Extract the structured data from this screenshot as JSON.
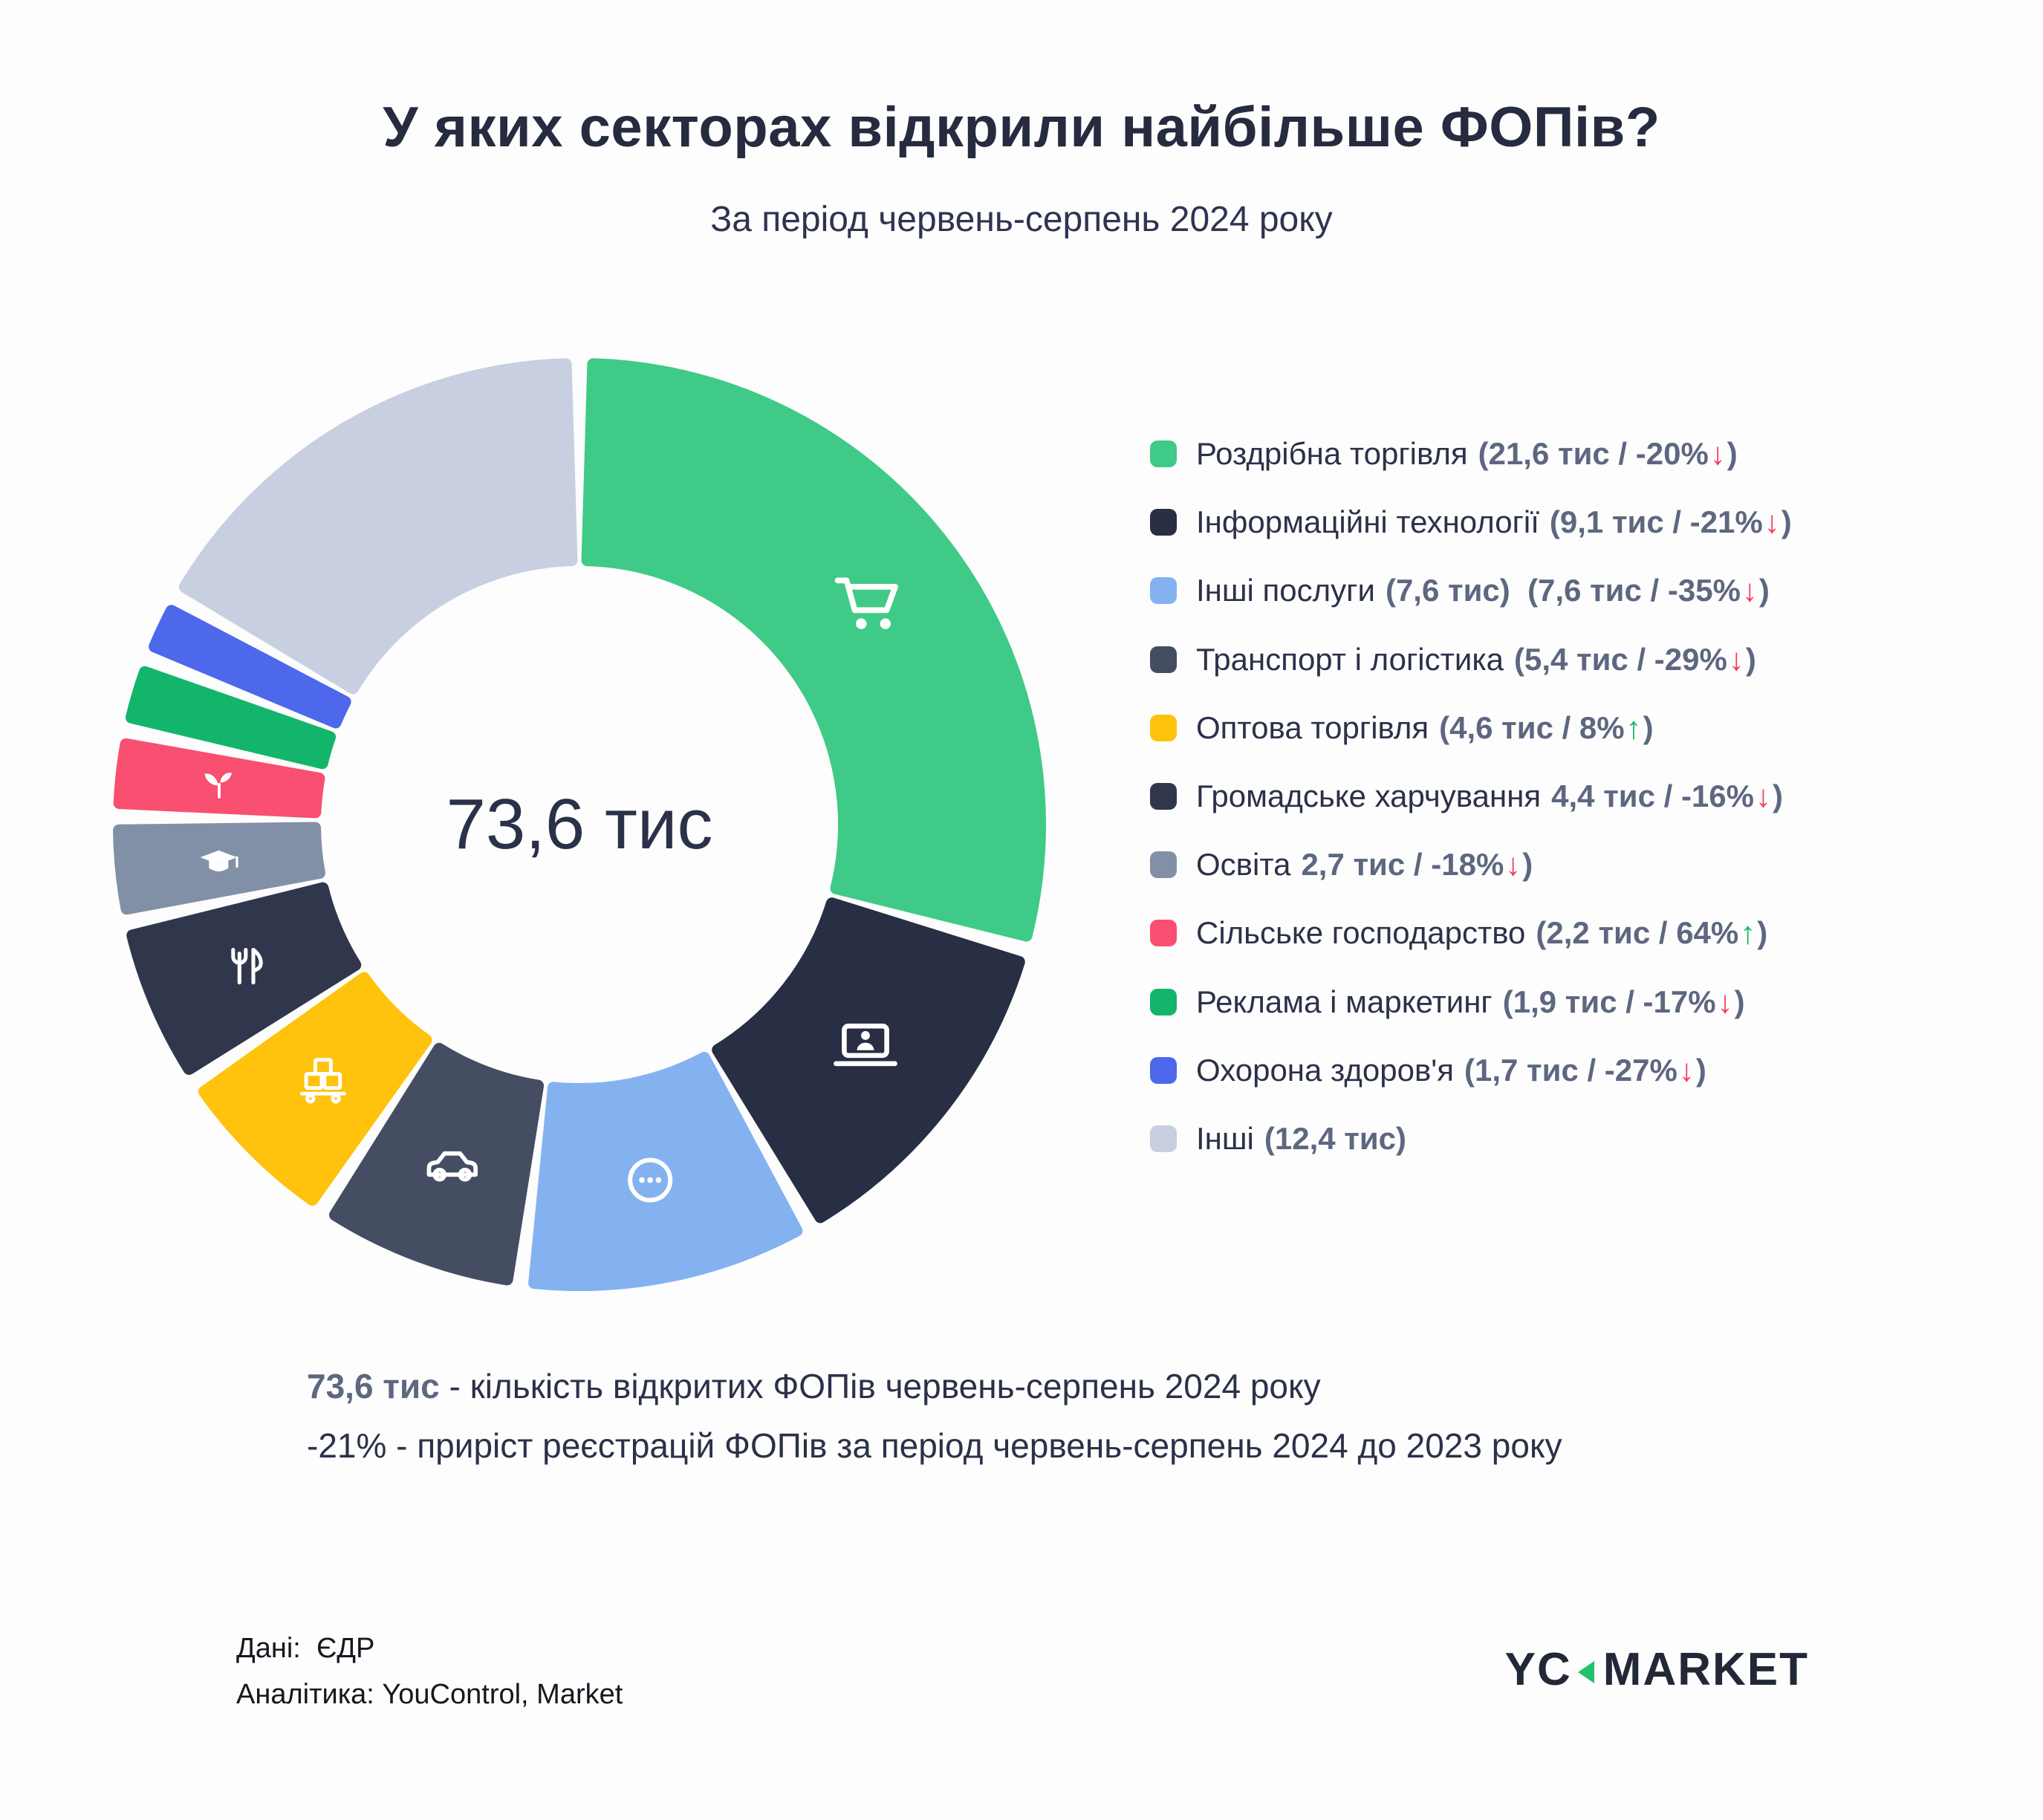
{
  "title": "У яких секторах відкрили найбільше ФОПів?",
  "subtitle": "За період червень-серпень 2024 року",
  "chart_data": {
    "type": "pie",
    "variant": "donut",
    "center_label": "73,6 тис",
    "total_thousands": 73.6,
    "units": "тис",
    "start_angle": "top",
    "direction": "clockwise",
    "legend_position": "right",
    "segments": [
      {
        "label": "Роздрібна торгівля",
        "value": 21.6,
        "change_pct": -20,
        "color": "#3fca87",
        "icon": "cart-icon"
      },
      {
        "label": "Інформаційні технології",
        "value": 9.1,
        "change_pct": -21,
        "color": "#282e44",
        "icon": "laptop-icon"
      },
      {
        "label": "Інші послуги",
        "value": 7.6,
        "change_pct": -35,
        "color": "#84b2f1",
        "icon": "dots-icon"
      },
      {
        "label": "Транспорт і логістика",
        "value": 5.4,
        "change_pct": -29,
        "color": "#454d63",
        "icon": "car-icon"
      },
      {
        "label": "Оптова торгівля",
        "value": 4.6,
        "change_pct": 8,
        "color": "#ffc20d",
        "icon": "boxes-icon"
      },
      {
        "label": "Громадське харчування",
        "value": 4.4,
        "change_pct": -16,
        "color": "#30374d",
        "icon": "cutlery-icon"
      },
      {
        "label": "Освіта",
        "value": 2.7,
        "change_pct": -18,
        "color": "#8290a7",
        "icon": "grad-cap-icon"
      },
      {
        "label": "Сільське господарство",
        "value": 2.2,
        "change_pct": 64,
        "color": "#f94f70",
        "icon": "sprout-icon"
      },
      {
        "label": "Реклама і маркетинг",
        "value": 1.9,
        "change_pct": -17,
        "color": "#13b56a",
        "icon": null
      },
      {
        "label": "Охорона здоров'я",
        "value": 1.7,
        "change_pct": -27,
        "color": "#4d68ea",
        "icon": null
      },
      {
        "label": "Інші",
        "value": 12.4,
        "change_pct": null,
        "color": "#c7cfe0",
        "icon": null
      }
    ]
  },
  "legend": {
    "items": [
      {
        "label": "Роздрібна торгівля",
        "value_text": "(21,6 тис / -20%",
        "arrow": "down",
        "close": ")"
      },
      {
        "label": "Інформаційні технології",
        "value_text": "(9,1 тис / -21%",
        "arrow": "down",
        "close": ")"
      },
      {
        "label": "Інші послуги",
        "value_text": "(7,6 тис)  (7,6 тис / -35%",
        "arrow": "down",
        "close": ")"
      },
      {
        "label": "Транспорт і логістика",
        "value_text": "(5,4 тис / -29%",
        "arrow": "down",
        "close": ")"
      },
      {
        "label": "Оптова торгівля",
        "value_text": "(4,6 тис / 8%",
        "arrow": "up",
        "close": ")"
      },
      {
        "label": "Громадське харчування",
        "value_text": "4,4 тис / -16%",
        "arrow": "down",
        "close": ")"
      },
      {
        "label": "Освіта",
        "value_text": "2,7 тис / -18%",
        "arrow": "down",
        "close": ")"
      },
      {
        "label": "Сільське господарство",
        "value_text": "(2,2 тис / 64%",
        "arrow": "up",
        "close": ")"
      },
      {
        "label": "Реклама і маркетинг",
        "value_text": "(1,9 тис / -17%",
        "arrow": "down",
        "close": ")"
      },
      {
        "label": "Охорона здоров'я",
        "value_text": "(1,7 тис / -27%",
        "arrow": "down",
        "close": ")"
      },
      {
        "label": "Інші",
        "value_text": "(12,4 тис)",
        "arrow": null,
        "close": ""
      }
    ]
  },
  "summary": {
    "line1_strong": "73,6 тис",
    "line1_rest": " - кількість відкритих ФОПів червень-серпень 2024 року",
    "line2_strong": "-21%",
    "line2_rest": " - приріст реєстрацій ФОПів за період червень-серпень 2024 до 2023 року"
  },
  "footer": {
    "source_label": "Дані:",
    "source_value": "ЄДР",
    "analytics": "Аналітика: YouControl, Market",
    "logo_left": "YC",
    "logo_right": "MARKET"
  },
  "colors": {
    "arrow_up": "#12b76a",
    "arrow_down": "#f23d5e",
    "accent_green": "#23c16b",
    "title": "#262b3f",
    "value_text": "#5d6780"
  }
}
